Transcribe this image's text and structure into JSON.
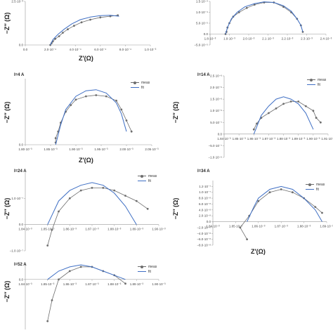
{
  "axis_labels": {
    "y": "−Z″ (Ω)",
    "x": "Z′(Ω)"
  },
  "legend": {
    "meas": "meas",
    "fit": "fit"
  },
  "colors": {
    "meas": "#6d6d6d",
    "fit": "#3f6fc4",
    "axis": "#9a9a9a"
  },
  "chart_data": [
    {
      "id": "p1",
      "type": "scatter",
      "title": "",
      "xlim": [
        0,
        0.001
      ],
      "ylim": [
        0,
        0.0025
      ],
      "xticks": [
        0,
        0.0002,
        0.0004,
        0.0006,
        0.0008,
        0.001
      ],
      "xtick_labels": [
        "0.0",
        "2.0·10⁻⁴",
        "4.0·10⁻⁴",
        "6.0·10⁻⁴",
        "8.0·10⁻⁴",
        "1.0·10⁻³"
      ],
      "yticks": [
        0,
        0.0025
      ],
      "ytick_labels": [
        "0.0",
        "2.5·10⁻³"
      ],
      "legend": false,
      "series": [
        {
          "name": "meas",
          "x": [
            0.0002,
            0.00021,
            0.00022,
            0.00024,
            0.00027,
            0.0003,
            0.00034,
            0.00039,
            0.00045,
            0.00052,
            0.0006,
            0.00068,
            0.00074
          ],
          "y": [
            0,
            0.0001,
            0.0002,
            0.00035,
            0.0005,
            0.0007,
            0.0009,
            0.0011,
            0.0013,
            0.00145,
            0.00158,
            0.00165,
            0.0017
          ]
        },
        {
          "name": "fit",
          "x": [
            0.0002,
            0.00022,
            0.00026,
            0.00031,
            0.00037,
            0.00044,
            0.00052,
            0.0006,
            0.00068,
            0.00075
          ],
          "y": [
            0,
            0.0003,
            0.0006,
            0.0009,
            0.0012,
            0.00145,
            0.0016,
            0.00168,
            0.0017,
            0.00165
          ]
        }
      ]
    },
    {
      "id": "p2",
      "type": "scatter",
      "title": "",
      "xlim": [
        0.0018,
        0.0024
      ],
      "ylim": [
        -5e-05,
        0.00015
      ],
      "xticks": [
        0.0018,
        0.0019,
        0.002,
        0.0021,
        0.0022,
        0.0023,
        0.0024
      ],
      "xtick_labels": [
        "1.8·10⁻³",
        "1.9·10⁻³",
        "2.0·10⁻³",
        "2.1·10⁻³",
        "2.2·10⁻³",
        "2.3·10⁻³",
        "2.4·10⁻³"
      ],
      "yticks": [
        -5e-05,
        0,
        5e-05,
        0.0001,
        0.00015
      ],
      "ytick_labels": [
        "−5.0·10⁻⁵",
        "0.0",
        "5.0·10⁻⁵",
        "1.0·10⁻⁴",
        "1.5·10⁻⁴"
      ],
      "legend": false,
      "series": [
        {
          "name": "meas",
          "x": [
            0.00188,
            0.001885,
            0.00189,
            0.0019,
            0.00192,
            0.00195,
            0.00199,
            0.00203,
            0.00208,
            0.00213,
            0.00218,
            0.00222,
            0.00225,
            0.00227,
            0.00228
          ],
          "y": [
            0,
            1e-05,
            3e-05,
            5e-05,
            8e-05,
            0.0001,
            0.00012,
            0.000135,
            0.000145,
            0.000145,
            0.000125,
            0.0001,
            7e-05,
            4e-05,
            1e-05
          ]
        },
        {
          "name": "fit",
          "x": [
            0.00188,
            0.00189,
            0.00191,
            0.00194,
            0.00198,
            0.00203,
            0.00208,
            0.00213,
            0.00218,
            0.00222,
            0.00225,
            0.00227,
            0.00228
          ],
          "y": [
            0,
            3e-05,
            7e-05,
            0.0001,
            0.000125,
            0.00014,
            0.000148,
            0.000145,
            0.00013,
            0.000105,
            7e-05,
            4e-05,
            1e-05
          ]
        }
      ]
    },
    {
      "id": "p3",
      "type": "scatter",
      "title": "I=4 A",
      "xlim": [
        0.0018,
        0.00205
      ],
      "ylim": [
        0,
        6e-05
      ],
      "xticks": [
        0.0018,
        0.00185,
        0.0019,
        0.00195,
        0.002,
        0.00205
      ],
      "xtick_labels": [
        "1.80·10⁻³",
        "1.85·10⁻³",
        "1.90·10⁻³",
        "1.95·10⁻³",
        "2.00·10⁻³",
        "2.05·10⁻³"
      ],
      "yticks": [
        0
      ],
      "ytick_labels": [
        "0.0"
      ],
      "legend": true,
      "series": [
        {
          "name": "meas",
          "x": [
            0.00186,
            0.00186,
            0.001865,
            0.00187,
            0.00188,
            0.00189,
            0.0019,
            0.00192,
            0.00194,
            0.00196,
            0.00198,
            0.00199,
            0.002,
            0.00201
          ],
          "y": [
            2e-06,
            6e-06,
            1.2e-05,
            2e-05,
            3e-05,
            3.6e-05,
            4.1e-05,
            4.4e-05,
            4.5e-05,
            4.4e-05,
            4e-05,
            3.2e-05,
            2.2e-05,
            1.2e-05
          ]
        },
        {
          "name": "fit",
          "x": [
            0.00186,
            0.00187,
            0.00188,
            0.0019,
            0.00192,
            0.00194,
            0.00196,
            0.00198,
            0.00199,
            0.002
          ],
          "y": [
            0,
            1.8e-05,
            3.2e-05,
            4.4e-05,
            4.9e-05,
            5e-05,
            4.7e-05,
            3.8e-05,
            2.8e-05,
            1.2e-05
          ]
        }
      ]
    },
    {
      "id": "p4",
      "type": "scatter",
      "title": "I=14 A",
      "xlim": [
        0.00184,
        0.00191
      ],
      "ylim": [
        -1e-06,
        2.5e-06
      ],
      "xticks": [
        0.00184,
        0.00185,
        0.00186,
        0.00187,
        0.00188,
        0.00189,
        0.0019,
        0.00191
      ],
      "xtick_labels": [
        "1.84·10⁻³",
        "1.85·10⁻³",
        "1.86·10⁻³",
        "1.87·10⁻³",
        "1.88·10⁻³",
        "1.89·10⁻³",
        "1.90·10⁻³",
        "1.91·10⁻³"
      ],
      "yticks": [
        -1e-06,
        -5e-07,
        0,
        5e-07,
        1e-06,
        1.5e-06,
        2e-06,
        2.5e-06
      ],
      "ytick_labels": [
        "−1.0·10⁻⁶",
        "−5.0·10⁻⁷",
        "0.0",
        "5.0·10⁻⁷",
        "1.0·10⁻⁶",
        "1.5·10⁻⁶",
        "2.0·10⁻⁶",
        "2.5·10⁻⁶"
      ],
      "legend": true,
      "series": [
        {
          "name": "meas",
          "x": [
            0.00186,
            0.001862,
            0.001865,
            0.00187,
            0.001875,
            0.00188,
            0.001885,
            0.00189,
            0.001895,
            0.0019,
            0.001902,
            0.001905
          ],
          "y": [
            2e-07,
            4.5e-07,
            7e-07,
            9e-07,
            1.1e-06,
            1.3e-06,
            1.4e-06,
            1.4e-06,
            1.2e-06,
            1e-06,
            7e-07,
            5e-07
          ]
        },
        {
          "name": "fit",
          "x": [
            0.00186,
            0.001865,
            0.00187,
            0.001875,
            0.00188,
            0.001885,
            0.00189,
            0.001895,
            0.0019
          ],
          "y": [
            0,
            8e-07,
            1.2e-06,
            1.5e-06,
            1.6e-06,
            1.5e-06,
            1.3e-06,
            9e-07,
            2e-07
          ]
        }
      ]
    },
    {
      "id": "p5",
      "type": "scatter",
      "title": "I=24 A",
      "xlim": [
        0.00184,
        0.0019
      ],
      "ylim": [
        -1e-07,
        2e-07
      ],
      "xticks": [
        0.00184,
        0.00185,
        0.00186,
        0.00187,
        0.00188,
        0.00189,
        0.0019
      ],
      "xtick_labels": [
        "1.84·10⁻³",
        "1.85·10⁻³",
        "1.86·10⁻³",
        "1.87·10⁻³",
        "1.88·10⁻³",
        "1.89·10⁻³",
        "1.90·10⁻³"
      ],
      "yticks": [
        -1e-07,
        0,
        1e-07
      ],
      "ytick_labels": [
        "−1.0·10⁻⁷",
        "0.0",
        "1.0·10⁻⁷"
      ],
      "legend": true,
      "series": [
        {
          "name": "meas",
          "x": [
            0.00185,
            0.001852,
            0.001855,
            0.00186,
            0.001865,
            0.00187,
            0.001875,
            0.00188,
            0.001885,
            0.00189,
            0.001895
          ],
          "y": [
            -8e-08,
            -2e-08,
            5e-08,
            1e-07,
            1.3e-07,
            1.4e-07,
            1.4e-07,
            1.3e-07,
            1.1e-07,
            9e-08,
            6e-08
          ]
        },
        {
          "name": "fit",
          "x": [
            0.00185,
            0.001855,
            0.00186,
            0.001865,
            0.00187,
            0.001875,
            0.00188,
            0.001885,
            0.00189
          ],
          "y": [
            0,
            9e-08,
            1.3e-07,
            1.5e-07,
            1.6e-07,
            1.5e-07,
            1.2e-07,
            7e-08,
            0
          ]
        }
      ]
    },
    {
      "id": "p6",
      "type": "scatter",
      "title": "I=34 A",
      "xlim": [
        0.00184,
        0.00189
      ],
      "ylim": [
        -8e-08,
        1.4e-07
      ],
      "xticks": [
        0.00184,
        0.00185,
        0.00186,
        0.00187,
        0.00188,
        0.00189
      ],
      "xtick_labels": [
        "1.84·10⁻³",
        "1.85·10⁻³",
        "1.86·10⁻³",
        "1.87·10⁻³",
        "1.88·10⁻³",
        "1.89·10⁻³"
      ],
      "yticks": [
        -8e-08,
        -6e-08,
        -4e-08,
        -2e-08,
        0,
        2e-08,
        4e-08,
        6e-08,
        8e-08,
        1e-07,
        1.2e-07
      ],
      "ytick_labels": [
        "−8.0·10⁻⁸",
        "−6.0·10⁻⁸",
        "−4.0·10⁻⁸",
        "−2.0·10⁻⁸",
        "0.0",
        "2.0·10⁻⁸",
        "4.0·10⁻⁸",
        "6.0·10⁻⁸",
        "8.0·10⁻⁸",
        "1.0·10⁻⁷",
        "1.2·10⁻⁷"
      ],
      "legend": true,
      "series": [
        {
          "name": "meas",
          "x": [
            0.001855,
            0.001852,
            0.001856,
            0.00186,
            0.001865,
            0.00187,
            0.001875,
            0.00188,
            0.001885,
            0.001888
          ],
          "y": [
            -6e-08,
            -2e-08,
            2e-08,
            7e-08,
            1e-07,
            1.1e-07,
            1e-07,
            8e-08,
            5e-08,
            3e-08
          ]
        },
        {
          "name": "fit",
          "x": [
            0.001855,
            0.001858,
            0.00186,
            0.001865,
            0.00187,
            0.001875,
            0.00188,
            0.001885,
            0.001888
          ],
          "y": [
            0,
            5e-08,
            8e-08,
            1.1e-07,
            1.2e-07,
            1.1e-07,
            8e-08,
            4e-08,
            0
          ]
        }
      ]
    },
    {
      "id": "p7",
      "type": "scatter",
      "title": "I=52 A",
      "xlim": [
        0.00184,
        0.0019
      ],
      "ylim": [
        -1.2e-07,
        4e-08
      ],
      "xticks": [
        0.00184,
        0.00185,
        0.00186,
        0.00187,
        0.00188,
        0.00189,
        0.0019
      ],
      "xtick_labels": [
        "1.84·10⁻³",
        "1.85·10⁻³",
        "1.86·10⁻³",
        "1.87·10⁻³",
        "1.88·10⁻³",
        "1.89·10⁻³",
        "1.90·10⁻³"
      ],
      "yticks": [
        0
      ],
      "ytick_labels": [
        "0.0"
      ],
      "legend": true,
      "series": [
        {
          "name": "meas",
          "x": [
            0.00185,
            0.001852,
            0.001855,
            0.00186,
            0.001865,
            0.00187,
            0.001875,
            0.00188,
            0.001885
          ],
          "y": [
            -1e-07,
            -5e-08,
            0,
            2e-08,
            3e-08,
            3e-08,
            2e-08,
            1e-08,
            -1e-08
          ]
        },
        {
          "name": "fit",
          "x": [
            0.00185,
            0.001855,
            0.00186,
            0.001865,
            0.00187,
            0.001875,
            0.00188,
            0.001885
          ],
          "y": [
            0,
            2e-08,
            3e-08,
            3.5e-08,
            3e-08,
            2e-08,
            1e-08,
            0
          ]
        }
      ]
    }
  ]
}
